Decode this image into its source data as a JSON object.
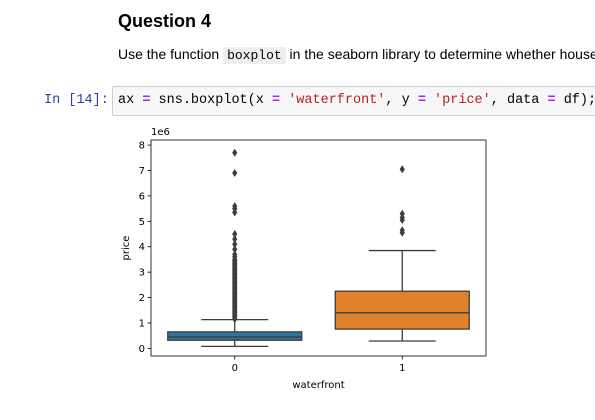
{
  "notebook": {
    "heading": "Question 4",
    "instruction": {
      "before": "Use the function ",
      "code": "boxplot",
      "after": " in the seaborn library to determine whether houses"
    },
    "cell": {
      "prompt": "In [14]:",
      "code": {
        "var": "ax",
        "assign": "=",
        "call": "sns.boxplot(x",
        "eq1": "=",
        "arg_x": "'waterfront'",
        "sep1": ", y",
        "eq2": "=",
        "arg_y": "'price'",
        "sep2": ", data",
        "eq3": "=",
        "tail": "df);"
      }
    }
  },
  "chart_data": {
    "type": "boxplot",
    "xlabel": "waterfront",
    "ylabel": "price",
    "offset_label": "1e6",
    "ylim": [
      -0.3,
      8.2
    ],
    "yticks": [
      0,
      1,
      2,
      3,
      4,
      5,
      6,
      7,
      8
    ],
    "ytick_labels": [
      "0",
      "1",
      "2",
      "3",
      "4",
      "5",
      "6",
      "7",
      "8"
    ],
    "categories": [
      "0",
      "1"
    ],
    "boxes": [
      {
        "category": "0",
        "color": "#3274a1",
        "whisker_low": 0.08,
        "q1": 0.32,
        "median": 0.45,
        "q3": 0.65,
        "whisker_high": 1.13,
        "outliers": [
          7.7,
          6.9,
          5.6,
          5.5,
          5.35,
          4.5,
          4.3,
          4.1,
          3.9,
          3.7,
          3.6,
          3.5,
          3.45,
          3.4,
          3.35,
          3.3,
          3.25,
          3.2,
          3.15,
          3.1,
          3.05,
          3.0,
          2.95,
          2.9,
          2.85,
          2.8,
          2.75,
          2.7,
          2.65,
          2.6,
          2.55,
          2.5,
          2.45,
          2.4,
          2.35,
          2.3,
          2.25,
          2.2,
          2.15,
          2.1,
          2.05,
          2.0,
          1.95,
          1.9,
          1.85,
          1.8,
          1.75,
          1.7,
          1.65,
          1.6,
          1.55,
          1.5,
          1.45,
          1.4,
          1.35,
          1.3,
          1.25,
          1.2,
          1.15
        ]
      },
      {
        "category": "1",
        "color": "#e1812c",
        "whisker_low": 0.29,
        "q1": 0.76,
        "median": 1.4,
        "q3": 2.25,
        "whisker_high": 3.85,
        "outliers": [
          7.05,
          5.3,
          5.15,
          5.05,
          4.65,
          4.55
        ]
      }
    ]
  }
}
